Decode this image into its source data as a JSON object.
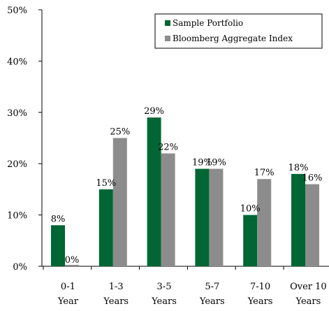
{
  "chart_data": {
    "type": "bar",
    "categories": [
      [
        "0-1",
        "Year"
      ],
      [
        "1-3",
        "Years"
      ],
      [
        "3-5",
        "Years"
      ],
      [
        "5-7",
        "Years"
      ],
      [
        "7-10",
        "Years"
      ],
      [
        "Over 10",
        "Years"
      ]
    ],
    "series": [
      {
        "name": "Sample Portfolio",
        "values": [
          8,
          15,
          29,
          19,
          10,
          18
        ],
        "labels": [
          "8%",
          "15%",
          "29%",
          "19%",
          "10%",
          "18%"
        ],
        "color": "#006633"
      },
      {
        "name": "Bloomberg Aggregate Index",
        "values": [
          0,
          25,
          22,
          19,
          17,
          16
        ],
        "labels": [
          "0%",
          "25%",
          "22%",
          "19%",
          "17%",
          "16%"
        ],
        "color": "#8c8c8c"
      }
    ],
    "ylim": [
      0,
      50
    ],
    "yticks": [
      0,
      10,
      20,
      30,
      40,
      50
    ],
    "ytick_labels": [
      "0%",
      "10%",
      "20%",
      "30%",
      "40%",
      "50%"
    ],
    "grid": false,
    "legend_position": "top-right",
    "title": "",
    "xlabel": "",
    "ylabel": ""
  }
}
